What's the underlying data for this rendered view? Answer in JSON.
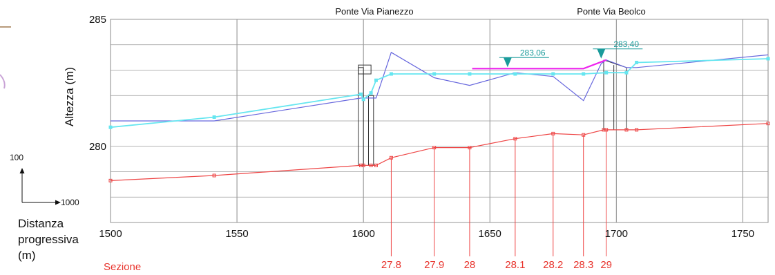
{
  "chart_data": {
    "type": "line",
    "xlim": [
      1500,
      1760
    ],
    "ylim": [
      277,
      285
    ],
    "x_ticks": [
      1500,
      1550,
      1600,
      1650,
      1700,
      1750
    ],
    "y_tick_labels": [
      {
        "value": 285,
        "label": "285"
      },
      {
        "value": 280,
        "label": "280"
      }
    ],
    "grid": true,
    "xlabel_lines": [
      "Distanza",
      "progressiva",
      "(m)"
    ],
    "ylabel": "Altezza (m)",
    "bridges": [
      {
        "name": "Ponte Via Pianezzo",
        "x": 1602
      },
      {
        "name": "Ponte Via Beolco",
        "x": 1700
      }
    ],
    "section_caption": "Sezione",
    "sections": [
      {
        "label": "27.8",
        "x": 1611
      },
      {
        "label": "27.9",
        "x": 1628
      },
      {
        "label": "28",
        "x": 1642
      },
      {
        "label": "28.1",
        "x": 1660
      },
      {
        "label": "28.2",
        "x": 1675
      },
      {
        "label": "28.3",
        "x": 1687
      },
      {
        "label": "29",
        "x": 1696
      }
    ],
    "series": [
      {
        "color": "#ee4444",
        "x": [
          1500,
          1541,
          1599,
          1600,
          1603,
          1605,
          1611,
          1628,
          1642,
          1660,
          1675,
          1687,
          1695,
          1696,
          1704,
          1708,
          1760
        ],
        "y": [
          278.65,
          278.85,
          279.25,
          279.25,
          279.25,
          279.25,
          279.55,
          279.95,
          279.95,
          280.3,
          280.5,
          280.45,
          280.65,
          280.65,
          280.65,
          280.65,
          280.9
        ]
      },
      {
        "color": "#6666dd",
        "x": [
          1500,
          1541,
          1599,
          1600,
          1605,
          1611,
          1628,
          1642,
          1660,
          1675,
          1687,
          1694,
          1696,
          1704,
          1708,
          1760
        ],
        "y": [
          281.0,
          281.0,
          281.9,
          281.9,
          281.9,
          283.7,
          282.7,
          282.4,
          282.9,
          282.75,
          281.8,
          283.25,
          283.4,
          283.1,
          283.1,
          283.6
        ]
      },
      {
        "color": "#66e6f0",
        "x": [
          1500,
          1541,
          1599,
          1600,
          1603,
          1605,
          1611,
          1628,
          1642,
          1660,
          1675,
          1687,
          1696,
          1704,
          1708,
          1760
        ],
        "y": [
          280.75,
          281.15,
          282.05,
          281.85,
          282.1,
          282.6,
          282.85,
          282.85,
          282.85,
          282.85,
          282.85,
          282.85,
          282.9,
          282.9,
          283.3,
          283.45
        ]
      },
      {
        "color": "#ee22ee",
        "x": [
          1643,
          1687,
          1696
        ],
        "y": [
          283.06,
          283.06,
          283.4
        ]
      }
    ],
    "water_level_markers": [
      {
        "label": "283,06",
        "x": 1657,
        "y": 283.06
      },
      {
        "label": "283,40",
        "x": 1694,
        "y": 283.4
      }
    ],
    "scale_indicator": {
      "vertical_label": "100",
      "horizontal_label": "1000"
    }
  }
}
